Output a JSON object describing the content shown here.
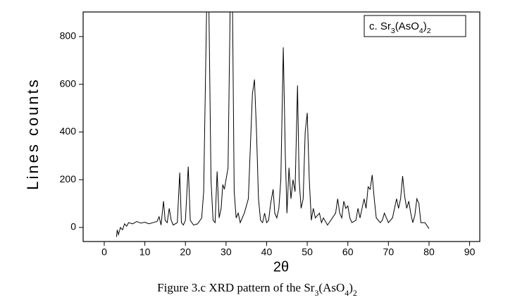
{
  "chart_data": {
    "type": "line",
    "legend_text": "c. Sr3(AsO4)2",
    "xlabel": "2θ",
    "ylabel": "Lines counts",
    "caption": "Figure 3.c XRD pattern of the Sr3(AsO4)2",
    "xlim": [
      -5.2,
      92.5
    ],
    "ylim": [
      -59,
      903
    ],
    "xticks": [
      0,
      10,
      20,
      30,
      40,
      50,
      60,
      70,
      80,
      90
    ],
    "yticks": [
      0,
      200,
      400,
      600,
      800
    ],
    "legend": "upper right",
    "x": [
      3.0,
      3.2,
      3.5,
      4,
      4.5,
      5,
      5.5,
      6,
      7,
      8,
      9,
      10,
      11,
      12,
      13,
      13.5,
      14,
      14.6,
      15,
      15.5,
      16,
      16.5,
      17,
      18,
      18.6,
      19,
      19.5,
      20,
      20.7,
      21.2,
      22,
      23,
      24,
      24.5,
      25.2,
      25.8,
      26.3,
      26.8,
      27.3,
      27.8,
      28.3,
      28.8,
      29.2,
      29.6,
      30,
      30.5,
      31,
      31.6,
      32,
      32.5,
      33,
      33.5,
      34.5,
      35.5,
      36.5,
      37,
      37.5,
      38,
      38.5,
      39,
      39.5,
      40,
      40.5,
      41,
      41.6,
      42,
      42.5,
      43,
      43.5,
      44.1,
      44.6,
      45,
      45.5,
      46,
      46.5,
      47,
      47.6,
      48,
      48.5,
      49,
      49.5,
      50,
      50.5,
      51,
      51.5,
      52,
      53,
      53.5,
      54,
      55,
      56,
      57,
      57.5,
      58,
      58.5,
      59,
      59.5,
      60,
      60.5,
      61,
      62,
      62.5,
      63,
      64,
      64.5,
      65,
      65.5,
      66,
      66.5,
      67,
      68,
      68.5,
      69,
      70,
      71,
      72,
      72.5,
      73,
      73.5,
      74,
      74.5,
      75,
      75.5,
      76,
      76.5,
      77,
      77.5,
      78,
      79,
      80
    ],
    "series": [
      {
        "name": "Sr3(AsO4)2",
        "color": "#000000",
        "values": [
          -40,
          -10,
          -30,
          0,
          -10,
          15,
          5,
          20,
          15,
          25,
          18,
          22,
          15,
          20,
          25,
          45,
          10,
          110,
          30,
          20,
          80,
          30,
          10,
          20,
          230,
          20,
          10,
          30,
          255,
          30,
          10,
          15,
          40,
          150,
          903,
          903,
          200,
          30,
          20,
          235,
          40,
          80,
          180,
          160,
          200,
          250,
          903,
          903,
          150,
          40,
          60,
          20,
          60,
          120,
          560,
          620,
          400,
          120,
          30,
          20,
          60,
          20,
          30,
          100,
          160,
          60,
          40,
          80,
          200,
          755,
          300,
          60,
          250,
          120,
          200,
          150,
          595,
          200,
          80,
          120,
          400,
          480,
          200,
          30,
          80,
          40,
          60,
          20,
          40,
          10,
          35,
          60,
          120,
          60,
          40,
          110,
          80,
          90,
          40,
          20,
          30,
          80,
          40,
          120,
          80,
          170,
          160,
          220,
          120,
          40,
          20,
          30,
          60,
          20,
          40,
          120,
          80,
          120,
          215,
          130,
          80,
          110,
          60,
          20,
          50,
          120,
          100,
          20,
          20,
          -5
        ]
      }
    ]
  }
}
